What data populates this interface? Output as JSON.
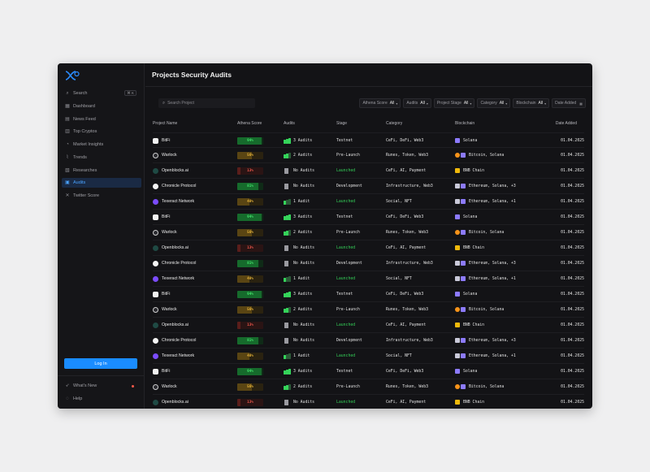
{
  "sidebar": {
    "search_label": "Search",
    "search_kbd": "⌘ K",
    "items": [
      {
        "label": "Dashboard",
        "icon": "grid-icon"
      },
      {
        "label": "News Feed",
        "icon": "news-icon"
      },
      {
        "label": "Top Cryptos",
        "icon": "chart-icon"
      },
      {
        "label": "Market Insights",
        "icon": "insights-icon"
      },
      {
        "label": "Trends",
        "icon": "trend-icon"
      },
      {
        "label": "Researches",
        "icon": "research-icon"
      },
      {
        "label": "Audits",
        "icon": "audit-icon",
        "active": true
      },
      {
        "label": "Twitter Score",
        "icon": "x-icon"
      }
    ],
    "login_label": "Log In",
    "whats_new_label": "What's New",
    "help_label": "Help"
  },
  "header": {
    "title": "Projects Security Audits"
  },
  "toolbar": {
    "search_placeholder": "Search Project",
    "filters": [
      {
        "label": "Athena Score",
        "value": "All"
      },
      {
        "label": "Audits",
        "value": "All"
      },
      {
        "label": "Project Stage",
        "value": "All"
      },
      {
        "label": "Category",
        "value": "All"
      },
      {
        "label": "Blockchain",
        "value": "All"
      },
      {
        "label": "Date Added",
        "value": ""
      }
    ]
  },
  "table": {
    "columns": [
      "Project Name",
      "Athena Score",
      "Audits",
      "Stage",
      "Category",
      "Blockchain",
      "Date Added"
    ],
    "rows": [
      {
        "name": "BitFi",
        "score": "94%",
        "score_pct": 94,
        "audits": "3 Audits",
        "stage": "Testnet",
        "category": "CeFi, DeFi, Web3",
        "chain": "Solana",
        "date": "01.04.2025"
      },
      {
        "name": "Warlock",
        "score": "56%",
        "score_pct": 56,
        "audits": "2 Audits",
        "stage": "Pre-Launch",
        "category": "Runes, Token, Web3",
        "chain": "Bitcoin, Solana",
        "date": "01.04.2025"
      },
      {
        "name": "Openblocks.ai",
        "score": "13%",
        "score_pct": 13,
        "audits": "No Audits",
        "stage": "Launched",
        "category": "CeFi, AI, Payment",
        "chain": "BNB Chain",
        "date": "01.04.2025"
      },
      {
        "name": "Chronicle Protocol",
        "score": "81%",
        "score_pct": 81,
        "audits": "No Audits",
        "stage": "Development",
        "category": "Infrastructure, Web3",
        "chain": "Ethereum, Solana, +3",
        "date": "01.04.2025"
      },
      {
        "name": "Texeract Network",
        "score": "48%",
        "score_pct": 48,
        "audits": "1 Audit",
        "stage": "Launched",
        "category": "Social, NFT",
        "chain": "Ethereum, Solana, +1",
        "date": "01.04.2025"
      },
      {
        "name": "BitFi",
        "score": "94%",
        "score_pct": 94,
        "audits": "3 Audits",
        "stage": "Testnet",
        "category": "CeFi, DeFi, Web3",
        "chain": "Solana",
        "date": "01.04.2025"
      },
      {
        "name": "Warlock",
        "score": "56%",
        "score_pct": 56,
        "audits": "2 Audits",
        "stage": "Pre-Launch",
        "category": "Runes, Token, Web3",
        "chain": "Bitcoin, Solana",
        "date": "01.04.2025"
      },
      {
        "name": "Openblocks.ai",
        "score": "13%",
        "score_pct": 13,
        "audits": "No Audits",
        "stage": "Launched",
        "category": "CeFi, AI, Payment",
        "chain": "BNB Chain",
        "date": "01.04.2025"
      },
      {
        "name": "Chronicle Protocol",
        "score": "81%",
        "score_pct": 81,
        "audits": "No Audits",
        "stage": "Development",
        "category": "Infrastructure, Web3",
        "chain": "Ethereum, Solana, +3",
        "date": "01.04.2025"
      },
      {
        "name": "Texeract Network",
        "score": "48%",
        "score_pct": 48,
        "audits": "1 Audit",
        "stage": "Launched",
        "category": "Social, NFT",
        "chain": "Ethereum, Solana, +1",
        "date": "01.04.2025"
      },
      {
        "name": "BitFi",
        "score": "94%",
        "score_pct": 94,
        "audits": "3 Audits",
        "stage": "Testnet",
        "category": "CeFi, DeFi, Web3",
        "chain": "Solana",
        "date": "01.04.2025"
      },
      {
        "name": "Warlock",
        "score": "56%",
        "score_pct": 56,
        "audits": "2 Audits",
        "stage": "Pre-Launch",
        "category": "Runes, Token, Web3",
        "chain": "Bitcoin, Solana",
        "date": "01.04.2025"
      },
      {
        "name": "Openblocks.ai",
        "score": "13%",
        "score_pct": 13,
        "audits": "No Audits",
        "stage": "Launched",
        "category": "CeFi, AI, Payment",
        "chain": "BNB Chain",
        "date": "01.04.2025"
      },
      {
        "name": "Chronicle Protocol",
        "score": "81%",
        "score_pct": 81,
        "audits": "No Audits",
        "stage": "Development",
        "category": "Infrastructure, Web3",
        "chain": "Ethereum, Solana, +3",
        "date": "01.04.2025"
      },
      {
        "name": "Texeract Network",
        "score": "48%",
        "score_pct": 48,
        "audits": "1 Audit",
        "stage": "Launched",
        "category": "Social, NFT",
        "chain": "Ethereum, Solana, +1",
        "date": "01.04.2025"
      },
      {
        "name": "BitFi",
        "score": "94%",
        "score_pct": 94,
        "audits": "3 Audits",
        "stage": "Testnet",
        "category": "CeFi, DeFi, Web3",
        "chain": "Solana",
        "date": "01.04.2025"
      },
      {
        "name": "Warlock",
        "score": "56%",
        "score_pct": 56,
        "audits": "2 Audits",
        "stage": "Pre-Launch",
        "category": "Runes, Token, Web3",
        "chain": "Bitcoin, Solana",
        "date": "01.04.2025"
      },
      {
        "name": "Openblocks.ai",
        "score": "13%",
        "score_pct": 13,
        "audits": "No Audits",
        "stage": "Launched",
        "category": "CeFi, AI, Payment",
        "chain": "BNB Chain",
        "date": "01.04.2025"
      }
    ]
  },
  "colors": {
    "accent": "#1a8cff",
    "score_high": "#2fd04f",
    "score_mid": "#d9a21b",
    "score_low": "#e5483d",
    "launched": "#34d058"
  }
}
